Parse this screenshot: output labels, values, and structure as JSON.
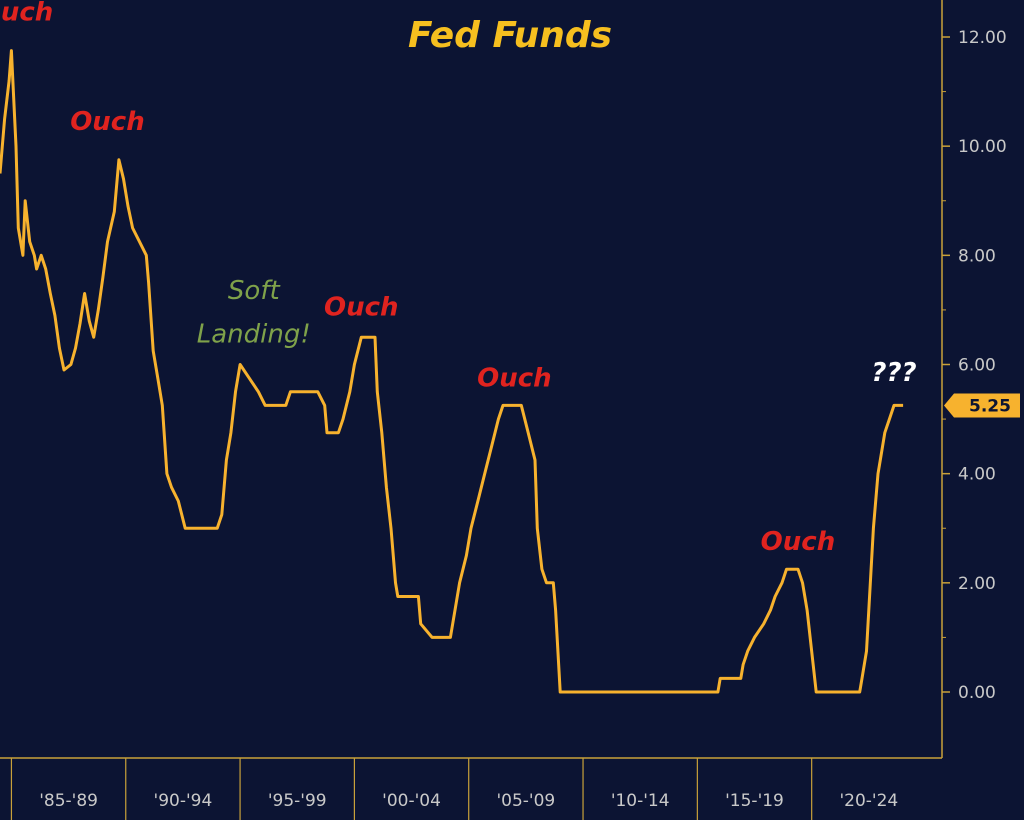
{
  "colors": {
    "background": "#0c1433",
    "line": "#f7b22e",
    "title": "#f6bf1f",
    "ouch": "#e0231f",
    "soft_landing": "#7fa24a",
    "question": "#ffffff",
    "axis": "#c9a13a"
  },
  "chart_data": {
    "type": "line",
    "title": "Fed Funds",
    "xlabel": "",
    "ylabel": "",
    "ylim": [
      -1.2,
      12.6
    ],
    "xlim": [
      1984.5,
      2025.7
    ],
    "y_axis_position": "right",
    "y_ticks": [
      "12.00",
      "10.00",
      "8.00",
      "6.00",
      "4.00",
      "2.00",
      "0.00"
    ],
    "x_tick_labels": [
      "'85-'89",
      "'90-'94",
      "'95-'99",
      "'00-'04",
      "'05-'09",
      "'10-'14",
      "'15-'19",
      "'20-'24"
    ],
    "last_value_label": "5.25",
    "annotations": [
      {
        "text": "Ouch",
        "x": 1985.2,
        "y": 12.3,
        "kind": "ouch"
      },
      {
        "text": "Ouch",
        "x": 1989.2,
        "y": 10.3,
        "kind": "ouch"
      },
      {
        "text": "Soft",
        "x": 1995.6,
        "y": 7.2,
        "kind": "soft"
      },
      {
        "text": "Landing!",
        "x": 1995.6,
        "y": 6.4,
        "kind": "soft"
      },
      {
        "text": "Ouch",
        "x": 2000.3,
        "y": 6.9,
        "kind": "ouch"
      },
      {
        "text": "Ouch",
        "x": 2007.0,
        "y": 5.6,
        "kind": "ouch"
      },
      {
        "text": "Ouch",
        "x": 2019.4,
        "y": 2.6,
        "kind": "ouch"
      },
      {
        "text": "???",
        "x": 2023.6,
        "y": 5.7,
        "kind": "question"
      }
    ],
    "series": [
      {
        "values": [
          [
            1984.5,
            9.5
          ],
          [
            1984.7,
            10.5
          ],
          [
            1984.9,
            11.2
          ],
          [
            1985.0,
            11.75
          ],
          [
            1985.2,
            10.0
          ],
          [
            1985.3,
            8.5
          ],
          [
            1985.5,
            8.0
          ],
          [
            1985.6,
            9.0
          ],
          [
            1985.8,
            8.25
          ],
          [
            1986.0,
            8.0
          ],
          [
            1986.1,
            7.75
          ],
          [
            1986.3,
            8.0
          ],
          [
            1986.5,
            7.75
          ],
          [
            1986.7,
            7.3
          ],
          [
            1986.9,
            6.9
          ],
          [
            1987.1,
            6.3
          ],
          [
            1987.3,
            5.9
          ],
          [
            1987.6,
            6.0
          ],
          [
            1987.8,
            6.3
          ],
          [
            1988.0,
            6.75
          ],
          [
            1988.2,
            7.3
          ],
          [
            1988.4,
            6.8
          ],
          [
            1988.6,
            6.5
          ],
          [
            1988.8,
            7.0
          ],
          [
            1989.0,
            7.6
          ],
          [
            1989.2,
            8.25
          ],
          [
            1989.5,
            8.8
          ],
          [
            1989.7,
            9.75
          ],
          [
            1989.9,
            9.4
          ],
          [
            1990.1,
            8.9
          ],
          [
            1990.3,
            8.5
          ],
          [
            1990.6,
            8.25
          ],
          [
            1990.9,
            8.0
          ],
          [
            1991.0,
            7.5
          ],
          [
            1991.2,
            6.25
          ],
          [
            1991.4,
            5.75
          ],
          [
            1991.6,
            5.25
          ],
          [
            1991.8,
            4.0
          ],
          [
            1992.0,
            3.75
          ],
          [
            1992.3,
            3.5
          ],
          [
            1992.6,
            3.0
          ],
          [
            1993.0,
            3.0
          ],
          [
            1993.6,
            3.0
          ],
          [
            1994.0,
            3.0
          ],
          [
            1994.2,
            3.25
          ],
          [
            1994.4,
            4.25
          ],
          [
            1994.6,
            4.75
          ],
          [
            1994.8,
            5.5
          ],
          [
            1995.0,
            6.0
          ],
          [
            1995.4,
            5.75
          ],
          [
            1995.8,
            5.5
          ],
          [
            1996.1,
            5.25
          ],
          [
            1996.6,
            5.25
          ],
          [
            1997.0,
            5.25
          ],
          [
            1997.2,
            5.5
          ],
          [
            1997.8,
            5.5
          ],
          [
            1998.4,
            5.5
          ],
          [
            1998.7,
            5.25
          ],
          [
            1998.8,
            4.75
          ],
          [
            1999.3,
            4.75
          ],
          [
            1999.5,
            5.0
          ],
          [
            1999.8,
            5.5
          ],
          [
            2000.0,
            6.0
          ],
          [
            2000.3,
            6.5
          ],
          [
            2000.6,
            6.5
          ],
          [
            2000.9,
            6.5
          ],
          [
            2001.0,
            5.5
          ],
          [
            2001.2,
            4.75
          ],
          [
            2001.4,
            3.75
          ],
          [
            2001.6,
            3.0
          ],
          [
            2001.8,
            2.0
          ],
          [
            2001.9,
            1.75
          ],
          [
            2002.3,
            1.75
          ],
          [
            2002.8,
            1.75
          ],
          [
            2002.9,
            1.25
          ],
          [
            2003.4,
            1.0
          ],
          [
            2003.8,
            1.0
          ],
          [
            2004.2,
            1.0
          ],
          [
            2004.4,
            1.5
          ],
          [
            2004.6,
            2.0
          ],
          [
            2004.9,
            2.5
          ],
          [
            2005.1,
            3.0
          ],
          [
            2005.4,
            3.5
          ],
          [
            2005.7,
            4.0
          ],
          [
            2006.0,
            4.5
          ],
          [
            2006.3,
            5.0
          ],
          [
            2006.5,
            5.25
          ],
          [
            2006.9,
            5.25
          ],
          [
            2007.3,
            5.25
          ],
          [
            2007.6,
            4.75
          ],
          [
            2007.9,
            4.25
          ],
          [
            2008.0,
            3.0
          ],
          [
            2008.2,
            2.25
          ],
          [
            2008.4,
            2.0
          ],
          [
            2008.7,
            2.0
          ],
          [
            2008.8,
            1.5
          ],
          [
            2009.0,
            0.0
          ],
          [
            2011.0,
            0.0
          ],
          [
            2013.0,
            0.0
          ],
          [
            2015.9,
            0.0
          ],
          [
            2016.0,
            0.25
          ],
          [
            2016.9,
            0.25
          ],
          [
            2017.0,
            0.5
          ],
          [
            2017.2,
            0.75
          ],
          [
            2017.5,
            1.0
          ],
          [
            2017.9,
            1.25
          ],
          [
            2018.2,
            1.5
          ],
          [
            2018.4,
            1.75
          ],
          [
            2018.7,
            2.0
          ],
          [
            2018.9,
            2.25
          ],
          [
            2019.4,
            2.25
          ],
          [
            2019.6,
            2.0
          ],
          [
            2019.8,
            1.5
          ],
          [
            2020.2,
            0.0
          ],
          [
            2021.0,
            0.0
          ],
          [
            2022.1,
            0.0
          ],
          [
            2022.2,
            0.25
          ],
          [
            2022.4,
            0.75
          ],
          [
            2022.5,
            1.5
          ],
          [
            2022.6,
            2.25
          ],
          [
            2022.7,
            3.0
          ],
          [
            2022.9,
            4.0
          ],
          [
            2023.0,
            4.25
          ],
          [
            2023.2,
            4.75
          ],
          [
            2023.4,
            5.0
          ],
          [
            2023.6,
            5.25
          ],
          [
            2024.0,
            5.25
          ]
        ]
      }
    ]
  }
}
